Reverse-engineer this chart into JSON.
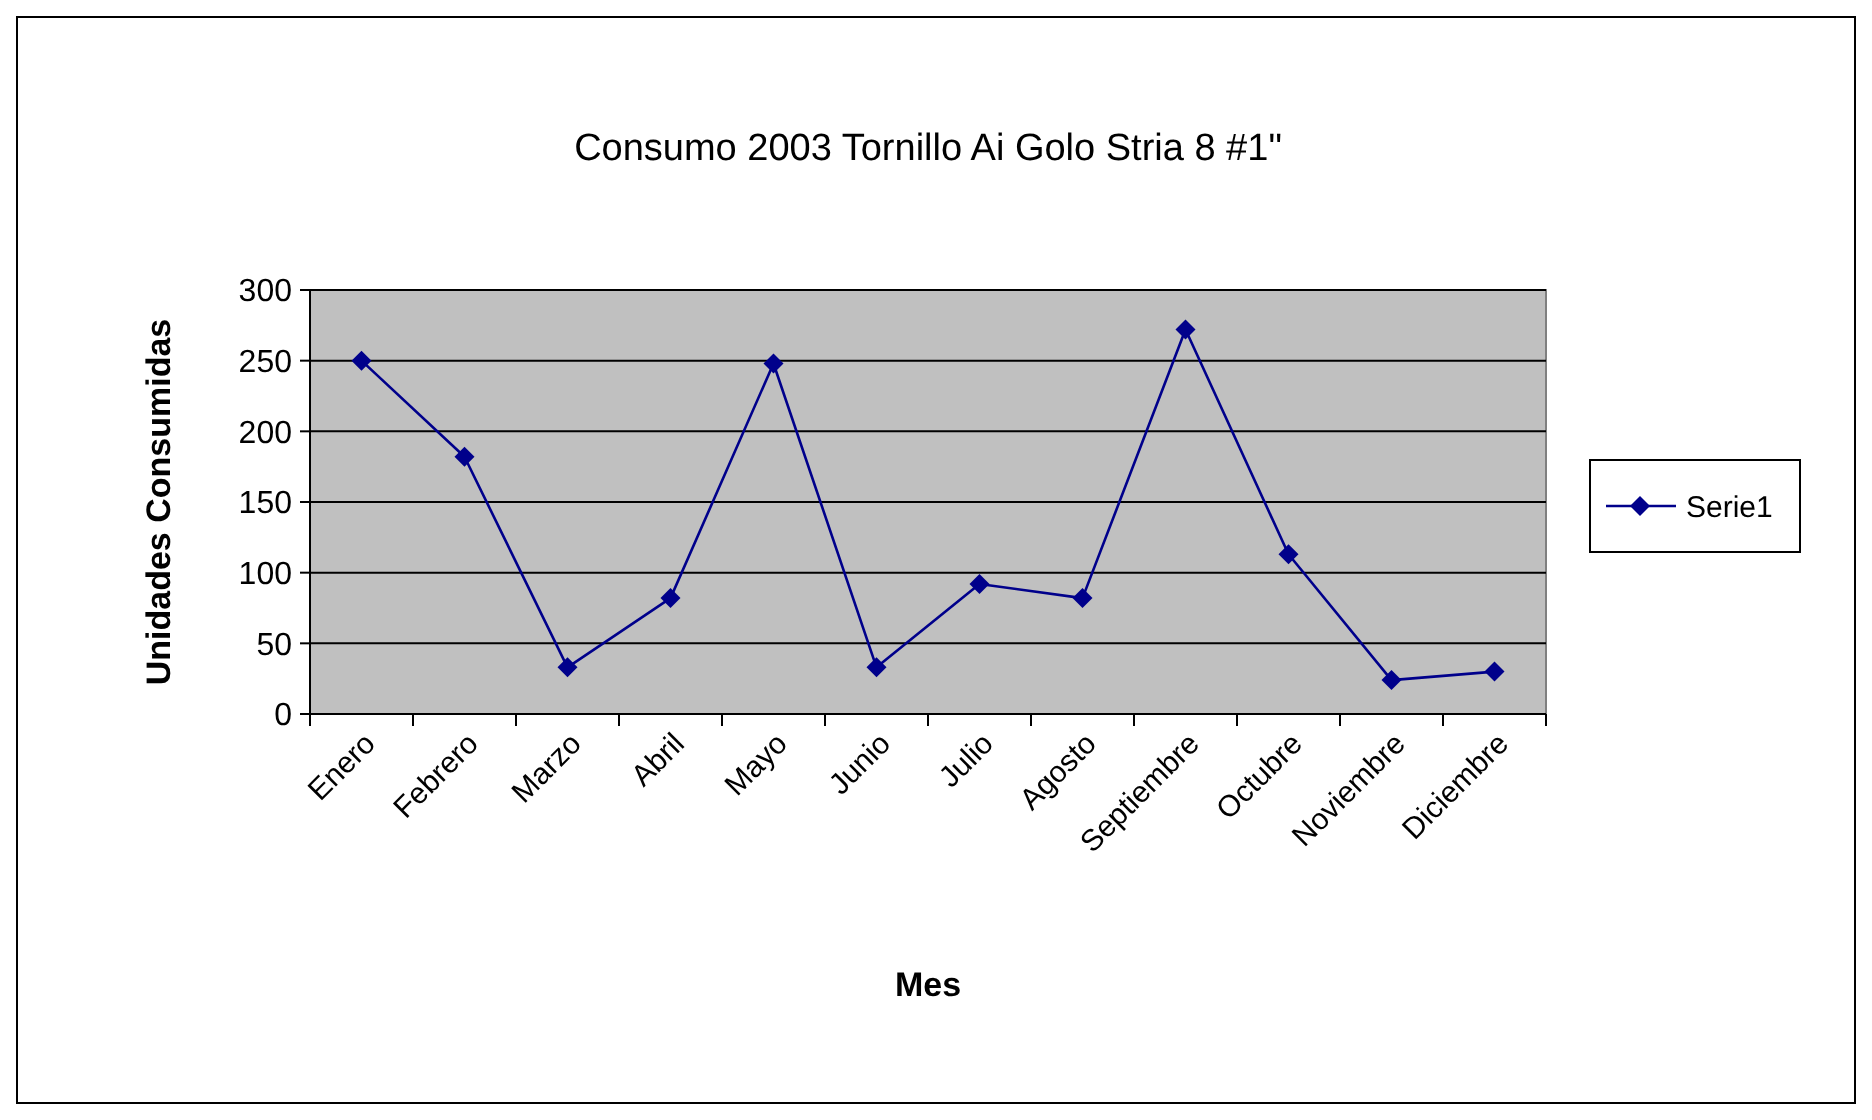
{
  "chart_data": {
    "type": "line",
    "title": "Consumo 2003 Tornillo Ai Golo Stria 8 #1\"",
    "xlabel": "Mes",
    "ylabel": "Unidades Consumidas",
    "categories": [
      "Enero",
      "Febrero",
      "Marzo",
      "Abril",
      "Mayo",
      "Junio",
      "Julio",
      "Agosto",
      "Septiembre",
      "Octubre",
      "Noviembre",
      "Diciembre"
    ],
    "series": [
      {
        "name": "Serie1",
        "color": "#00008b",
        "values": [
          250,
          182,
          33,
          82,
          248,
          33,
          92,
          82,
          272,
          113,
          24,
          30
        ]
      }
    ],
    "ylim": [
      0,
      300
    ],
    "yticks": [
      0,
      50,
      100,
      150,
      200,
      250,
      300
    ],
    "grid": "y",
    "legend": "right",
    "marker": "diamond",
    "line_style": "solid"
  }
}
